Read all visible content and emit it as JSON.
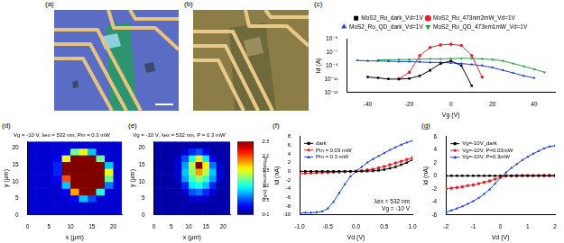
{
  "images": [
    {
      "panel": "(a)"
    },
    {
      "panel": "(b)"
    }
  ],
  "chart_data": [
    {
      "panel": "(c)",
      "type": "line",
      "x": [
        -45,
        -40,
        -35,
        -30,
        -25,
        -20,
        -15,
        -10,
        -5,
        0,
        5,
        10,
        15,
        20,
        25,
        30,
        35,
        40,
        45
      ],
      "series": [
        {
          "name": "MoS2_Ru_dark_Vd=1V",
          "color": "#000000",
          "marker": "square",
          "values": [
            null,
            2e-11,
            1.5e-11,
            1e-11,
            1e-11,
            1.2e-11,
            3e-11,
            2e-10,
            2e-09,
            5e-09,
            1e-09,
            1e-12,
            null,
            null,
            null,
            null,
            null,
            null,
            null
          ]
        },
        {
          "name": "MoS2_Ru_473nm2mW_Vd=1V",
          "color": "#e8222a",
          "marker": "circle",
          "values": [
            null,
            null,
            null,
            null,
            1e-11,
            1e-10,
            3e-08,
            5e-07,
            1.2e-06,
            1.5e-06,
            1e-06,
            3e-08,
            2e-11,
            null,
            null,
            null,
            null,
            null,
            null
          ]
        },
        {
          "name": "MoS2_Ru_QD_dark_Vd=1V",
          "color": "#1f3fd6",
          "marker": "triangle",
          "values": [
            6e-09,
            5e-09,
            5e-09,
            4.5e-09,
            4e-09,
            4e-09,
            3.5e-09,
            3e-09,
            3e-09,
            2.5e-09,
            2e-09,
            1.5e-09,
            1e-09,
            5e-10,
            2e-10,
            8e-11,
            3e-11,
            1.5e-11,
            null
          ]
        },
        {
          "name": "MoS2_Ru_QD_473nm1mW_Vd=1V",
          "color": "#22a045",
          "marker": "triangle-down",
          "values": [
            null,
            null,
            7e-09,
            7e-09,
            8e-09,
            8e-09,
            9e-09,
            1e-08,
            1e-08,
            1.1e-08,
            1.2e-08,
            1.2e-08,
            1e-08,
            8e-09,
            5e-09,
            2e-09,
            8e-10,
            3e-10,
            1e-10
          ]
        }
      ],
      "xlim": [
        -50,
        50
      ],
      "xticks": [
        -40,
        -20,
        0,
        20,
        40
      ],
      "ylim": [
        1e-13,
        1e-05
      ],
      "yticks": [
        {
          "value": 1e-13,
          "label": "10⁻¹³"
        },
        {
          "value": 1e-11,
          "label": "10⁻¹¹"
        },
        {
          "value": 1e-09,
          "label": "10⁻⁹"
        },
        {
          "value": 1e-07,
          "label": "10⁻⁷"
        },
        {
          "value": 1e-05,
          "label": "10⁻⁵"
        }
      ],
      "log": "y",
      "x_label": "Vg (V)",
      "y_label": "Id (A)",
      "legend": "top",
      "grid": false
    },
    {
      "panel": "(d)",
      "type": "heatmap",
      "annotations": [
        "Vg = -10 V, λex = 532 nm, Pin = 0.3 mW"
      ],
      "x": [
        1,
        3,
        5,
        7,
        9,
        11,
        13,
        15,
        17,
        19,
        21
      ],
      "y": [
        1,
        3,
        5,
        7,
        9,
        11,
        13,
        15,
        17,
        19,
        21
      ],
      "cells": [
        [
          0.2,
          0.2,
          0.2,
          0.2,
          0.2,
          0.2,
          0.2,
          0.2,
          0.2,
          0.2,
          0.2
        ],
        [
          0.2,
          0.2,
          0.2,
          0.2,
          0.2,
          0.2,
          0.2,
          0.2,
          0.2,
          0.2,
          0.2
        ],
        [
          0.2,
          0.2,
          0.2,
          0.2,
          0.2,
          0.3,
          0.8,
          0.5,
          0.2,
          0.2,
          0.2
        ],
        [
          0.2,
          0.2,
          0.2,
          0.2,
          0.3,
          1.8,
          2.5,
          2.5,
          1.0,
          0.2,
          0.2
        ],
        [
          0.2,
          0.2,
          0.2,
          0.2,
          0.8,
          2.5,
          2.5,
          2.5,
          2.5,
          0.6,
          0.2
        ],
        [
          0.2,
          0.2,
          0.2,
          0.3,
          2.0,
          2.5,
          2.5,
          2.5,
          2.5,
          1.2,
          0.2
        ],
        [
          0.2,
          0.2,
          0.2,
          0.4,
          2.5,
          2.5,
          2.5,
          2.5,
          2.5,
          1.5,
          0.2
        ],
        [
          0.2,
          0.2,
          0.2,
          0.4,
          2.5,
          2.5,
          2.5,
          2.5,
          2.5,
          0.8,
          0.2
        ],
        [
          0.2,
          0.2,
          0.2,
          0.3,
          1.5,
          2.5,
          2.5,
          2.5,
          1.2,
          0.2,
          0.2
        ],
        [
          0.2,
          0.2,
          0.2,
          0.2,
          0.3,
          1.2,
          1.5,
          0.8,
          0.2,
          0.2,
          0.2
        ],
        [
          0.2,
          0.2,
          0.2,
          0.2,
          0.2,
          0.2,
          0.2,
          0.2,
          0.2,
          0.2,
          0.2
        ]
      ],
      "colorbar": {
        "range": [
          0,
          2.5
        ]
      },
      "xlim": [
        0,
        22
      ],
      "xticks": [
        0,
        5,
        10,
        15,
        20
      ],
      "ylim": [
        0,
        22
      ],
      "yticks": [
        0,
        5,
        10,
        15,
        20
      ],
      "x_label": "x (μm)",
      "y_label": "y (μm)",
      "grid": false
    },
    {
      "panel": "(e)",
      "type": "heatmap",
      "annotations": [
        "Vg = -10 V, λex = 532 nm, P = 0.3 mW"
      ],
      "x": [
        1,
        3,
        5,
        7,
        9,
        11,
        13,
        15,
        17,
        19,
        21
      ],
      "y": [
        1,
        3,
        5,
        7,
        9,
        11,
        13,
        15,
        17,
        19,
        21
      ],
      "cells": [
        [
          0.1,
          0.1,
          0.1,
          0.1,
          0.1,
          0.1,
          0.1,
          0.1,
          0.1,
          0.1,
          0.1
        ],
        [
          0.1,
          0.1,
          0.1,
          0.1,
          0.1,
          0.1,
          0.1,
          0.1,
          0.1,
          0.1,
          0.1
        ],
        [
          0.1,
          0.1,
          0.1,
          0.1,
          0.1,
          0.2,
          0.2,
          0.2,
          0.1,
          0.1,
          0.1
        ],
        [
          0.1,
          0.1,
          0.1,
          0.1,
          0.2,
          0.5,
          0.6,
          0.4,
          0.2,
          0.1,
          0.1
        ],
        [
          0.1,
          0.1,
          0.1,
          0.1,
          0.4,
          0.9,
          1.0,
          0.8,
          0.4,
          0.1,
          0.1
        ],
        [
          0.1,
          0.1,
          0.1,
          0.2,
          0.7,
          1.1,
          1.3,
          1.1,
          0.7,
          0.2,
          0.1
        ],
        [
          0.1,
          0.1,
          0.1,
          0.2,
          0.8,
          1.3,
          1.8,
          1.4,
          0.8,
          0.2,
          0.1
        ],
        [
          0.1,
          0.1,
          0.1,
          0.2,
          0.7,
          1.4,
          2.5,
          1.6,
          0.6,
          0.2,
          0.1
        ],
        [
          0.1,
          0.1,
          0.1,
          0.2,
          0.5,
          1.0,
          1.6,
          0.9,
          0.3,
          0.1,
          0.1
        ],
        [
          0.1,
          0.1,
          0.1,
          0.1,
          0.2,
          0.4,
          0.5,
          0.3,
          0.1,
          0.1,
          0.1
        ],
        [
          0.1,
          0.1,
          0.1,
          0.1,
          0.1,
          0.1,
          0.1,
          0.1,
          0.1,
          0.1,
          0.1
        ]
      ],
      "colorbar": {
        "range": [
          0,
          2.5
        ],
        "ticks": [
          {
            "value": 0,
            "label": "0.00"
          },
          {
            "value": 0.5,
            "label": "0.50"
          },
          {
            "value": 1,
            "label": "1.00"
          },
          {
            "value": 1.5,
            "label": "1.50"
          },
          {
            "value": 2,
            "label": "2.00"
          },
          {
            "value": 2.5,
            "label": "2.50"
          }
        ],
        "label": "Photocurrent (nA)"
      },
      "xlim": [
        0,
        22
      ],
      "xticks": [
        0,
        5,
        10,
        15,
        20
      ],
      "ylim": [
        0,
        22
      ],
      "yticks": [
        0,
        5,
        10,
        15,
        20
      ],
      "x_label": "x (μm)",
      "y_label": "y (μm)",
      "grid": false
    },
    {
      "panel": "(f)",
      "type": "line",
      "x": [
        -1,
        -0.9,
        -0.8,
        -0.7,
        -0.6,
        -0.5,
        -0.4,
        -0.3,
        -0.2,
        -0.1,
        0,
        0.1,
        0.2,
        0.3,
        0.4,
        0.5,
        0.6,
        0.7,
        0.8,
        0.9,
        1
      ],
      "series": [
        {
          "name": "dark",
          "color": "#000000",
          "marker": "square",
          "values": [
            0,
            0,
            0,
            0,
            0,
            0,
            0,
            0,
            0,
            0,
            0,
            0.02,
            0.05,
            0.1,
            0.2,
            0.4,
            0.7,
            1.0,
            1.5,
            2.0,
            2.6
          ]
        },
        {
          "name": "Pin = 0.03 mW",
          "color": "#e8222a",
          "marker": "circle",
          "values": [
            -0.5,
            -0.45,
            -0.4,
            -0.35,
            -0.3,
            -0.25,
            -0.2,
            -0.15,
            -0.1,
            -0.05,
            0,
            0.1,
            0.3,
            0.5,
            0.8,
            1.1,
            1.5,
            1.9,
            2.3,
            2.7,
            3.1
          ]
        },
        {
          "name": "Pin = 0.3 mW",
          "color": "#1f3fd6",
          "marker": "triangle",
          "values": [
            -9.6,
            -9.5,
            -9.5,
            -9.4,
            -9.2,
            -8.5,
            -7,
            -5,
            -3,
            -1.2,
            0,
            1,
            2,
            2.8,
            3.5,
            4.2,
            4.9,
            5.5,
            6.1,
            6.6,
            7.0
          ]
        }
      ],
      "annotations": [
        "λex = 532 nm",
        "Vg = -10 V"
      ],
      "xlim": [
        -1,
        1
      ],
      "xticks": [
        {
          "value": -1,
          "label": "-1.0"
        },
        -0.5,
        {
          "value": 0,
          "label": "0.0"
        },
        0.5,
        {
          "value": 1,
          "label": "1.0"
        }
      ],
      "ylim": [
        -10,
        8
      ],
      "yticks": [
        -10,
        -8,
        -6,
        -4,
        -2,
        0,
        2,
        4,
        6,
        8
      ],
      "x_label": "Vd (V)",
      "y_label": "Id (nA)",
      "legend": "upper left",
      "grid": false
    },
    {
      "panel": "(g)",
      "type": "line",
      "x": [
        -2,
        -1.8,
        -1.6,
        -1.4,
        -1.2,
        -1,
        -0.8,
        -0.6,
        -0.4,
        -0.2,
        0,
        0.2,
        0.4,
        0.6,
        0.8,
        1,
        1.2,
        1.4,
        1.6,
        1.8,
        2
      ],
      "series": [
        {
          "name": "Vg=-10V_dark",
          "color": "#000000",
          "marker": "square",
          "values": [
            0,
            0,
            0,
            0,
            0,
            0,
            0,
            0,
            0,
            0,
            0,
            0,
            0,
            0,
            0,
            0,
            0,
            0,
            0,
            0,
            0
          ]
        },
        {
          "name": "Vg=-10V, P=0.03mW",
          "color": "#e8222a",
          "marker": "circle",
          "values": [
            -2,
            -1.9,
            -1.8,
            -1.7,
            -1.5,
            -1.4,
            -1.2,
            -1.0,
            -0.8,
            -0.5,
            -0.2,
            0,
            0.02,
            0.03,
            0.04,
            0.05,
            0.05,
            0.05,
            0.06,
            0.06,
            0.06
          ]
        },
        {
          "name": "Vg=-10V, P=0.3mW",
          "color": "#1f3fd6",
          "marker": "triangle",
          "values": [
            -5.6,
            -5.3,
            -5,
            -4.7,
            -4.3,
            -3.9,
            -3.4,
            -2.8,
            -2.1,
            -1.2,
            -0.3,
            0.5,
            1.2,
            1.8,
            2.4,
            2.9,
            3.4,
            3.8,
            4.2,
            4.5,
            4.6
          ]
        }
      ],
      "xlim": [
        -2,
        2
      ],
      "xticks": [
        -2,
        -1,
        0,
        1,
        2
      ],
      "ylim": [
        -6,
        6
      ],
      "yticks": [
        -6,
        -4,
        -2,
        0,
        2,
        4,
        6
      ],
      "x_label": "Vd (V)",
      "y_label": "Id (nA)",
      "legend": "upper left",
      "grid": false
    }
  ]
}
